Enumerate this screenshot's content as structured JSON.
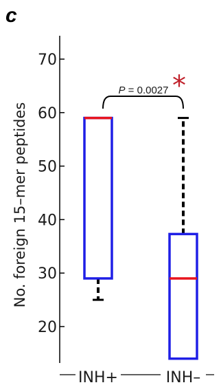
{
  "panel_label": "c",
  "colors": {
    "box": "#1f1fe6",
    "median": "#e8141e",
    "whisker": "#000000",
    "axis": "#000000",
    "significance": "#c0202a"
  },
  "chart_data": {
    "type": "box",
    "title": "",
    "ylabel": "No. foreign 15–mer peptides",
    "xlabel": "",
    "ylim": [
      13,
      72
    ],
    "yticks": [
      20,
      30,
      40,
      50,
      60,
      70
    ],
    "ytick_labels": [
      "20",
      "30",
      "40",
      "50",
      "60",
      "70"
    ],
    "categories": [
      "INH+",
      "INH–"
    ],
    "boxes": [
      {
        "category": "INH+",
        "min": 25,
        "q1": 29,
        "median": 59,
        "q3": 59,
        "max": 59
      },
      {
        "category": "INH–",
        "min": 14,
        "q1": 14,
        "median": 29,
        "q3": 37.3,
        "max": 59
      }
    ],
    "significance": {
      "p_value_text": "P = 0.0027",
      "p_prefix": "P",
      "p_rest": " = 0.0027",
      "marker": "*",
      "between": [
        "INH+",
        "INH–"
      ]
    },
    "grid": false
  }
}
